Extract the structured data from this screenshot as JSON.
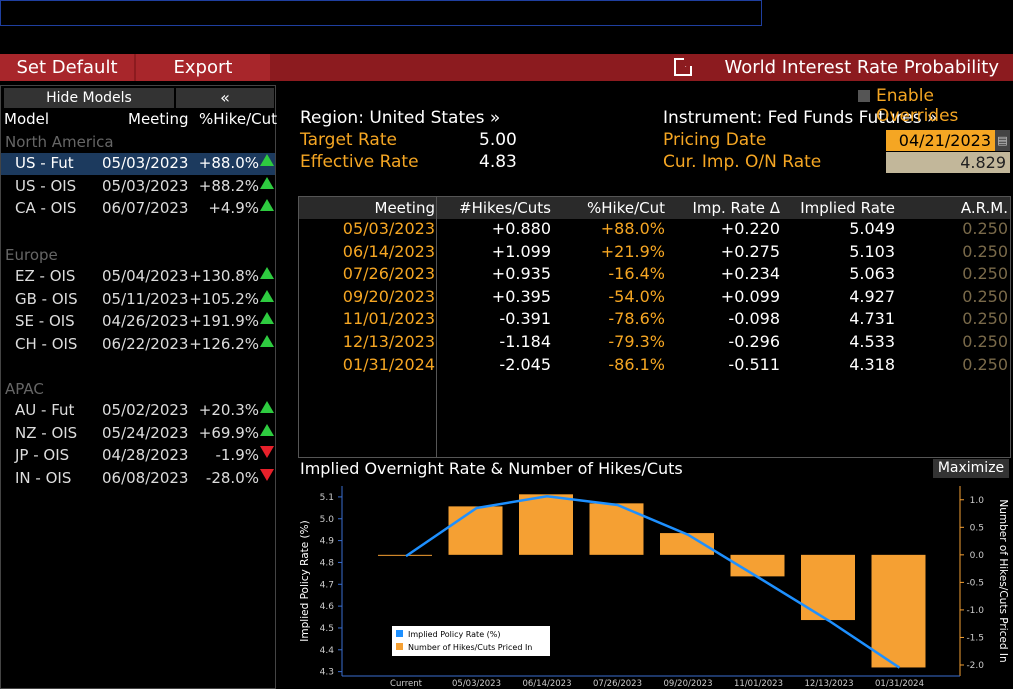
{
  "toolbar": {
    "set_default": "Set Default",
    "export": "Export",
    "title": "World Interest Rate Probability"
  },
  "left_panel": {
    "hide_models": "Hide Models",
    "collapse": "«",
    "headers": {
      "model": "Model",
      "meeting": "Meeting",
      "hike_cut": "%Hike/Cut"
    },
    "regions": [
      {
        "name": "North America",
        "rows": [
          {
            "model": "US - Fut",
            "meeting": "05/03/2023",
            "pct": "+88.0%",
            "dir": "up",
            "selected": true
          },
          {
            "model": "US - OIS",
            "meeting": "05/03/2023",
            "pct": "+88.2%",
            "dir": "up"
          },
          {
            "model": "CA - OIS",
            "meeting": "06/07/2023",
            "pct": "+4.9%",
            "dir": "up"
          }
        ]
      },
      {
        "name": "Europe",
        "rows": [
          {
            "model": "EZ - OIS",
            "meeting": "05/04/2023",
            "pct": "+130.8%",
            "dir": "up"
          },
          {
            "model": "GB - OIS",
            "meeting": "05/11/2023",
            "pct": "+105.2%",
            "dir": "up"
          },
          {
            "model": "SE - OIS",
            "meeting": "04/26/2023",
            "pct": "+191.9%",
            "dir": "up"
          },
          {
            "model": "CH - OIS",
            "meeting": "06/22/2023",
            "pct": "+126.2%",
            "dir": "up"
          }
        ]
      },
      {
        "name": "APAC",
        "rows": [
          {
            "model": "AU - Fut",
            "meeting": "05/02/2023",
            "pct": "+20.3%",
            "dir": "up"
          },
          {
            "model": "NZ - OIS",
            "meeting": "05/24/2023",
            "pct": "+69.9%",
            "dir": "up"
          },
          {
            "model": "JP - OIS",
            "meeting": "04/28/2023",
            "pct": "-1.9%",
            "dir": "down"
          },
          {
            "model": "IN - OIS",
            "meeting": "06/08/2023",
            "pct": "-28.0%",
            "dir": "down"
          }
        ]
      }
    ]
  },
  "info": {
    "region": "Region: United States »",
    "target_rate_label": "Target Rate",
    "target_rate": "5.00",
    "effective_rate_label": "Effective Rate",
    "effective_rate": "4.83",
    "instrument": "Instrument: Fed Funds Futures »",
    "enable_overrides": "Enable Overrides",
    "pricing_date_label": "Pricing Date",
    "pricing_date": "04/21/2023",
    "on_rate_label": "Cur. Imp. O/N Rate",
    "on_rate": "4.829"
  },
  "table": {
    "headers": [
      "Meeting",
      "#Hikes/Cuts",
      "%Hike/Cut",
      "Imp. Rate Δ",
      "Implied Rate",
      "A.R.M."
    ],
    "rows": [
      [
        "05/03/2023",
        "+0.880",
        "+88.0%",
        "+0.220",
        "5.049",
        "0.250"
      ],
      [
        "06/14/2023",
        "+1.099",
        "+21.9%",
        "+0.275",
        "5.103",
        "0.250"
      ],
      [
        "07/26/2023",
        "+0.935",
        "-16.4%",
        "+0.234",
        "5.063",
        "0.250"
      ],
      [
        "09/20/2023",
        "+0.395",
        "-54.0%",
        "+0.099",
        "4.927",
        "0.250"
      ],
      [
        "11/01/2023",
        "-0.391",
        "-78.6%",
        "-0.098",
        "4.731",
        "0.250"
      ],
      [
        "12/13/2023",
        "-1.184",
        "-79.3%",
        "-0.296",
        "4.533",
        "0.250"
      ],
      [
        "01/31/2024",
        "-2.045",
        "-86.1%",
        "-0.511",
        "4.318",
        "0.250"
      ]
    ]
  },
  "chart": {
    "title": "Implied Overnight Rate & Number of Hikes/Cuts",
    "maximize": "Maximize"
  },
  "chart_data": {
    "type": "bar",
    "title": "Implied Overnight Rate & Number of Hikes/Cuts",
    "categories": [
      "Current",
      "05/03/2023",
      "06/14/2023",
      "07/26/2023",
      "09/20/2023",
      "11/01/2023",
      "12/13/2023",
      "01/31/2024"
    ],
    "series": [
      {
        "name": "Implied Policy Rate (%)",
        "type": "line",
        "axis": "left",
        "values": [
          4.829,
          5.049,
          5.103,
          5.063,
          4.927,
          4.731,
          4.533,
          4.318
        ],
        "color": "#1e90ff"
      },
      {
        "name": "Number of Hikes/Cuts Priced In",
        "type": "bar",
        "axis": "right",
        "values": [
          0.0,
          0.88,
          1.099,
          0.935,
          0.395,
          -0.391,
          -1.184,
          -2.045
        ],
        "color": "#f5a033"
      }
    ],
    "ylabel": "Implied Policy Rate (%)",
    "y2label": "Number of Hikes/Cuts Priced In",
    "ylim": [
      4.28,
      5.15
    ],
    "y_ticks": [
      "4.3",
      "4.4",
      "4.5",
      "4.6",
      "4.7",
      "4.8",
      "4.9",
      "5.0",
      "5.1"
    ],
    "y2lim": [
      -2.2,
      1.25
    ],
    "y2_ticks": [
      "-2.0",
      "-1.5",
      "-1.0",
      "-0.5",
      "0.0",
      "0.5",
      "1.0"
    ],
    "legend_position": "bottom-left"
  },
  "colors": {
    "toolbar_red": "#8c1b1f",
    "orange": "#f5a623",
    "green_up": "#2ecc40",
    "red_down": "#e8202a",
    "line_blue": "#1e90ff",
    "bar_orange": "#f5a033"
  }
}
